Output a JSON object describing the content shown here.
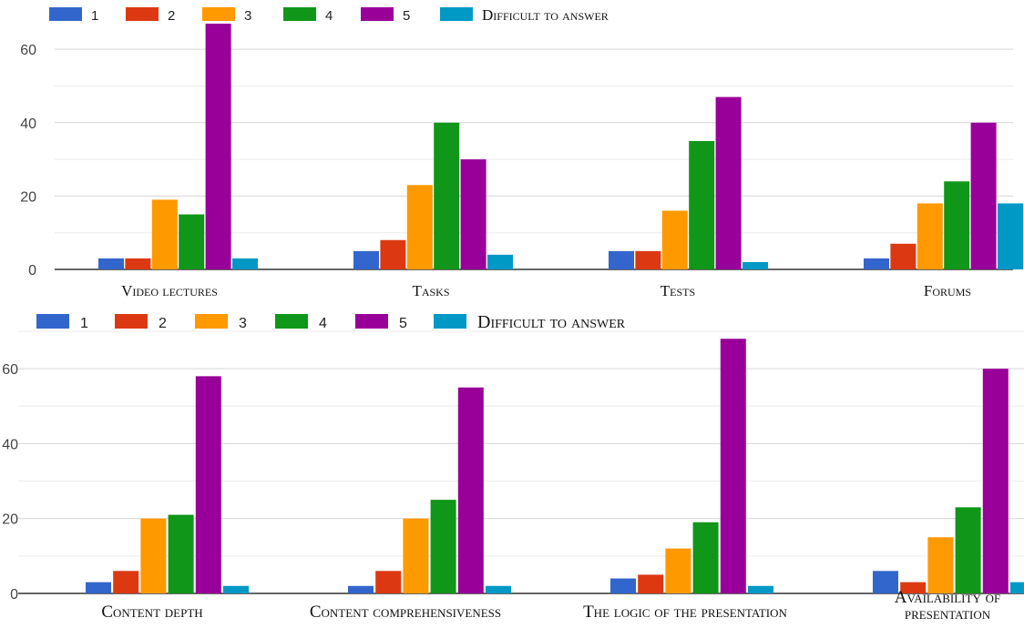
{
  "chart_data": [
    {
      "type": "bar",
      "legend_position": "top-left",
      "grid": true,
      "ylim": [
        0,
        66
      ],
      "yticks": [
        "0",
        "20",
        "40",
        "60"
      ],
      "categories": [
        "Video lectures",
        "Tasks",
        "Tests",
        "Forums"
      ],
      "series": [
        {
          "name": "1",
          "color": "#3366cc",
          "values": [
            3,
            5,
            5,
            3
          ]
        },
        {
          "name": "2",
          "color": "#dc3912",
          "values": [
            3,
            8,
            5,
            7
          ]
        },
        {
          "name": "3",
          "color": "#ff9900",
          "values": [
            19,
            23,
            16,
            18
          ]
        },
        {
          "name": "4",
          "color": "#109618",
          "values": [
            15,
            40,
            35,
            24
          ]
        },
        {
          "name": "5",
          "color": "#990099",
          "values": [
            67,
            30,
            47,
            40
          ]
        },
        {
          "name": "Difficult to answer",
          "color": "#0099c6",
          "values": [
            3,
            4,
            2,
            18
          ]
        }
      ]
    },
    {
      "type": "bar",
      "legend_position": "top-left",
      "grid": true,
      "ylim": [
        0,
        70
      ],
      "yticks": [
        "0",
        "20",
        "40",
        "60"
      ],
      "ytick_labels_shown": [
        "0",
        "20",
        "40",
        "60"
      ],
      "categories": [
        "Content depth",
        "Content comprehensiveness",
        "The logic of the presentation",
        "Availability of presentation"
      ],
      "series": [
        {
          "name": "1",
          "color": "#3366cc",
          "values": [
            3,
            2,
            4,
            6
          ]
        },
        {
          "name": "2",
          "color": "#dc3912",
          "values": [
            6,
            6,
            5,
            3
          ]
        },
        {
          "name": "3",
          "color": "#ff9900",
          "values": [
            20,
            20,
            12,
            15
          ]
        },
        {
          "name": "4",
          "color": "#109618",
          "values": [
            21,
            25,
            19,
            23
          ]
        },
        {
          "name": "5",
          "color": "#990099",
          "values": [
            58,
            55,
            68,
            60
          ]
        },
        {
          "name": "Difficult to answer",
          "color": "#0099c6",
          "values": [
            2,
            2,
            2,
            3
          ]
        }
      ]
    }
  ]
}
